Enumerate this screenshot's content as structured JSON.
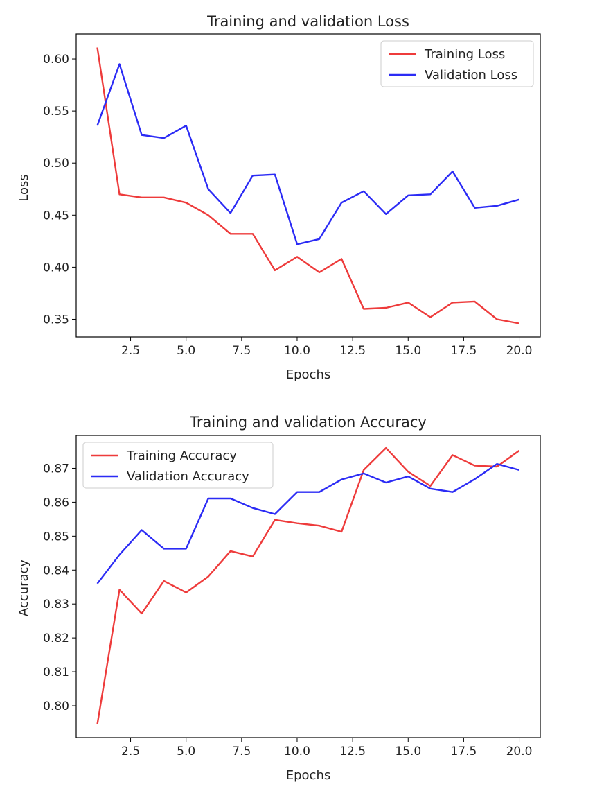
{
  "chart_data": [
    {
      "type": "line",
      "title": "Training and validation Loss",
      "xlabel": "Epochs",
      "ylabel": "Loss",
      "x": [
        1,
        2,
        3,
        4,
        5,
        6,
        7,
        8,
        9,
        10,
        11,
        12,
        13,
        14,
        15,
        16,
        17,
        18,
        19,
        20
      ],
      "xlim": [
        0.05,
        20.95
      ],
      "ylim": [
        0.333,
        0.624
      ],
      "xticks": [
        2.5,
        5.0,
        7.5,
        10.0,
        12.5,
        15.0,
        17.5,
        20.0
      ],
      "xtick_labels": [
        "2.5",
        "5.0",
        "7.5",
        "10.0",
        "12.5",
        "15.0",
        "17.5",
        "20.0"
      ],
      "yticks": [
        0.35,
        0.4,
        0.45,
        0.5,
        0.55,
        0.6
      ],
      "ytick_labels": [
        "0.35",
        "0.40",
        "0.45",
        "0.50",
        "0.55",
        "0.60"
      ],
      "grid": false,
      "legend": "top-right",
      "series": [
        {
          "name": "Training Loss",
          "color": "#ee3b3b",
          "values": [
            0.611,
            0.47,
            0.467,
            0.467,
            0.462,
            0.45,
            0.432,
            0.432,
            0.397,
            0.41,
            0.395,
            0.408,
            0.36,
            0.361,
            0.366,
            0.352,
            0.366,
            0.367,
            0.35,
            0.346
          ]
        },
        {
          "name": "Validation Loss",
          "color": "#2b2bf5",
          "values": [
            0.536,
            0.595,
            0.527,
            0.524,
            0.536,
            0.475,
            0.452,
            0.488,
            0.489,
            0.422,
            0.427,
            0.462,
            0.473,
            0.451,
            0.469,
            0.47,
            0.492,
            0.457,
            0.459,
            0.465
          ]
        }
      ]
    },
    {
      "type": "line",
      "title": "Training and validation Accuracy",
      "xlabel": "Epochs",
      "ylabel": "Accuracy",
      "x": [
        1,
        2,
        3,
        4,
        5,
        6,
        7,
        8,
        9,
        10,
        11,
        12,
        13,
        14,
        15,
        16,
        17,
        18,
        19,
        20
      ],
      "xlim": [
        0.05,
        20.95
      ],
      "ylim": [
        0.7906,
        0.8797
      ],
      "xticks": [
        2.5,
        5.0,
        7.5,
        10.0,
        12.5,
        15.0,
        17.5,
        20.0
      ],
      "xtick_labels": [
        "2.5",
        "5.0",
        "7.5",
        "10.0",
        "12.5",
        "15.0",
        "17.5",
        "20.0"
      ],
      "yticks": [
        0.8,
        0.81,
        0.82,
        0.83,
        0.84,
        0.85,
        0.86,
        0.87
      ],
      "ytick_labels": [
        "0.80",
        "0.81",
        "0.82",
        "0.83",
        "0.84",
        "0.85",
        "0.86",
        "0.87"
      ],
      "grid": false,
      "legend": "top-left",
      "series": [
        {
          "name": "Training Accuracy",
          "color": "#ee3b3b",
          "values": [
            0.7945,
            0.8342,
            0.8272,
            0.8368,
            0.8334,
            0.8381,
            0.8456,
            0.844,
            0.8548,
            0.8538,
            0.8531,
            0.8513,
            0.8695,
            0.876,
            0.869,
            0.8648,
            0.8739,
            0.8708,
            0.8705,
            0.8752
          ]
        },
        {
          "name": "Validation Accuracy",
          "color": "#2b2bf5",
          "values": [
            0.836,
            0.8445,
            0.8518,
            0.8463,
            0.8463,
            0.8611,
            0.8611,
            0.8583,
            0.8565,
            0.863,
            0.863,
            0.8667,
            0.8685,
            0.8658,
            0.8676,
            0.864,
            0.863,
            0.8668,
            0.8713,
            0.8695
          ]
        }
      ]
    }
  ]
}
